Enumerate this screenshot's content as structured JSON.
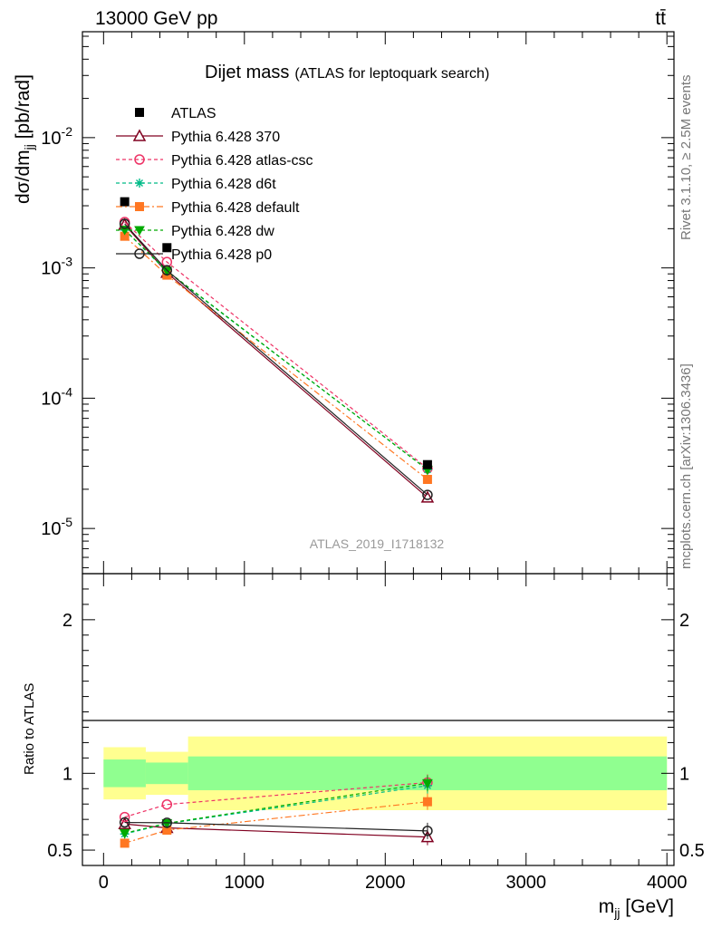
{
  "header": {
    "left": "13000 GeV pp",
    "right": "tt̄"
  },
  "side_labels": {
    "rivet": "Rivet 3.1.10, ≥ 2.5M events",
    "mcplots": "mcplots.cern.ch [arXiv:1306.3436]"
  },
  "chart_data": {
    "type": "line",
    "title": "Dijet mass",
    "subtitle": "(ATLAS for leptoquark search)",
    "watermark": "ATLAS_2019_I1718132",
    "xlabel": "m_jj [GeV]",
    "ylabel": "dσ/dm_jj [pb/rad]",
    "ratio_ylabel": "Ratio to ATLAS",
    "xlim": [
      -150,
      4050
    ],
    "ylim": [
      4.5e-06,
      0.065
    ],
    "yscale": "log",
    "ratio_ylim": [
      0.4,
      2.3
    ],
    "x_ticks": [
      "0",
      "1000",
      "2000",
      "3000",
      "4000"
    ],
    "y_ticks": [
      "10^-5",
      "10^-4",
      "10^-3",
      "10^-2"
    ],
    "ratio_ticks": [
      "0.5",
      "1",
      "2"
    ],
    "x": [
      150,
      450,
      2300
    ],
    "bins": [
      [
        0,
        300
      ],
      [
        300,
        600
      ],
      [
        600,
        4000
      ]
    ],
    "data": {
      "name": "ATLAS",
      "values": [
        0.00322,
        0.00143,
        3.09e-05
      ],
      "color": "#000000"
    },
    "band_inner": [
      0.09,
      0.07,
      0.11
    ],
    "band_outer": [
      0.17,
      0.14,
      0.24
    ],
    "band_colors": {
      "inner": "#90ff90",
      "outer": "#ffff90"
    },
    "series": [
      {
        "name": "Pythia 6.428 370",
        "color": "#800020",
        "dash": "",
        "marker": "triangle-open",
        "values": [
          0.00215,
          0.00092,
          1.73e-05
        ],
        "ratio": [
          0.67,
          0.645,
          0.585
        ]
      },
      {
        "name": "Pythia 6.428 atlas-csc",
        "color": "#ee3366",
        "dash": "4,3",
        "marker": "circle-open",
        "values": [
          0.00225,
          0.00111,
          2.89e-05
        ],
        "ratio": [
          0.715,
          0.797,
          0.94
        ]
      },
      {
        "name": "Pythia 6.428 d6t",
        "color": "#00bb88",
        "dash": "4,3",
        "marker": "asterisk",
        "values": [
          0.00195,
          0.00094,
          2.83e-05
        ],
        "ratio": [
          0.605,
          0.672,
          0.92
        ]
      },
      {
        "name": "Pythia 6.428 default",
        "color": "#ff7722",
        "dash": "7,3,2,3",
        "marker": "square",
        "values": [
          0.00175,
          0.00088,
          2.38e-05
        ],
        "ratio": [
          0.545,
          0.63,
          0.815
        ]
      },
      {
        "name": "Pythia 6.428 dw",
        "color": "#00aa00",
        "dash": "4,3",
        "marker": "triangle-down",
        "values": [
          0.00196,
          0.00095,
          2.82e-05
        ],
        "ratio": [
          0.61,
          0.675,
          0.935
        ]
      },
      {
        "name": "Pythia 6.428 p0",
        "color": "#222222",
        "dash": "",
        "marker": "circle-open",
        "values": [
          0.00218,
          0.00096,
          1.81e-05
        ],
        "ratio": [
          0.68,
          0.678,
          0.625
        ]
      }
    ]
  }
}
